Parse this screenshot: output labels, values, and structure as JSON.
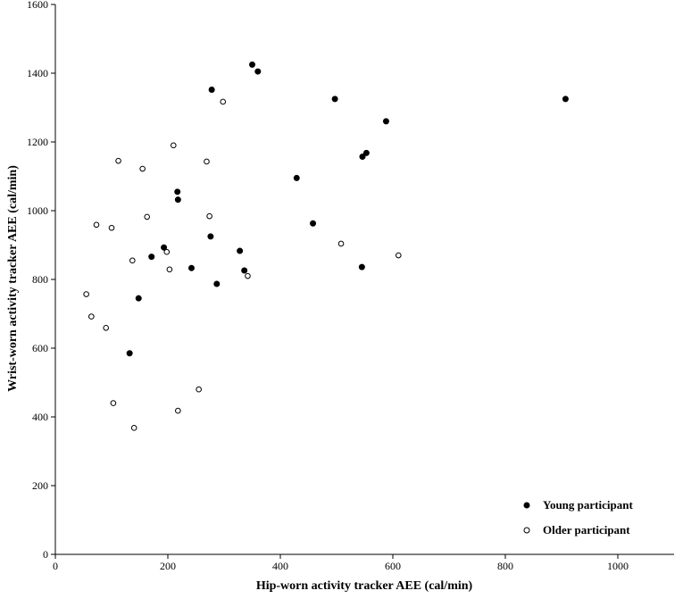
{
  "chart_data": {
    "type": "scatter",
    "xlabel": "Hip-worn activity tracker AEE (cal/min)",
    "ylabel": "Wrist-worn activity tracker AEE (cal/min)",
    "xlim": [
      0,
      1100
    ],
    "ylim": [
      0,
      1600
    ],
    "x_ticks": [
      0,
      200,
      400,
      600,
      800,
      1000
    ],
    "y_ticks": [
      0,
      200,
      400,
      600,
      800,
      1000,
      1200,
      1400,
      1600
    ],
    "grid": false,
    "legend_position": "bottom-right",
    "series": [
      {
        "name": "Young participant",
        "marker": "filled-circle",
        "color": "#000000",
        "points": [
          {
            "x": 350,
            "y": 1425
          },
          {
            "x": 360,
            "y": 1405
          },
          {
            "x": 278,
            "y": 1352
          },
          {
            "x": 497,
            "y": 1325
          },
          {
            "x": 907,
            "y": 1325
          },
          {
            "x": 588,
            "y": 1260
          },
          {
            "x": 553,
            "y": 1168
          },
          {
            "x": 546,
            "y": 1157
          },
          {
            "x": 429,
            "y": 1095
          },
          {
            "x": 217,
            "y": 1055
          },
          {
            "x": 218,
            "y": 1032
          },
          {
            "x": 458,
            "y": 963
          },
          {
            "x": 276,
            "y": 925
          },
          {
            "x": 193,
            "y": 893
          },
          {
            "x": 328,
            "y": 883
          },
          {
            "x": 171,
            "y": 866
          },
          {
            "x": 545,
            "y": 836
          },
          {
            "x": 242,
            "y": 833
          },
          {
            "x": 336,
            "y": 826
          },
          {
            "x": 287,
            "y": 787
          },
          {
            "x": 148,
            "y": 745
          },
          {
            "x": 132,
            "y": 585
          }
        ]
      },
      {
        "name": "Older participant",
        "marker": "open-circle",
        "color": "#000000",
        "points": [
          {
            "x": 298,
            "y": 1317
          },
          {
            "x": 210,
            "y": 1190
          },
          {
            "x": 112,
            "y": 1145
          },
          {
            "x": 269,
            "y": 1143
          },
          {
            "x": 155,
            "y": 1122
          },
          {
            "x": 163,
            "y": 982
          },
          {
            "x": 274,
            "y": 984
          },
          {
            "x": 73,
            "y": 959
          },
          {
            "x": 100,
            "y": 950
          },
          {
            "x": 508,
            "y": 904
          },
          {
            "x": 198,
            "y": 880
          },
          {
            "x": 610,
            "y": 870
          },
          {
            "x": 137,
            "y": 855
          },
          {
            "x": 203,
            "y": 829
          },
          {
            "x": 342,
            "y": 810
          },
          {
            "x": 55,
            "y": 757
          },
          {
            "x": 64,
            "y": 692
          },
          {
            "x": 90,
            "y": 659
          },
          {
            "x": 255,
            "y": 480
          },
          {
            "x": 103,
            "y": 440
          },
          {
            "x": 218,
            "y": 418
          },
          {
            "x": 140,
            "y": 368
          }
        ]
      }
    ]
  }
}
